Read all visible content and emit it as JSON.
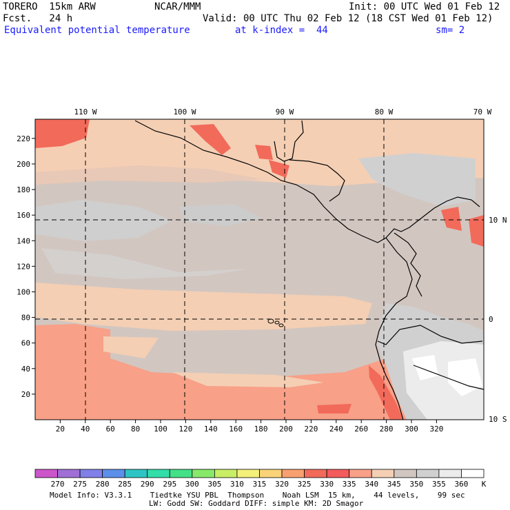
{
  "header": {
    "model": "TORERO  15km ARW",
    "org": "NCAR/MMM",
    "init": "Init: 00 UTC Wed 01 Feb 12",
    "fcst": "Fcst.   24 h",
    "valid": "Valid: 00 UTC Thu 02 Feb 12 (18 CST Wed 01 Feb 12)",
    "field": "Equivalent potential temperature",
    "level": "at k-index =  44",
    "smooth": "sm= 2"
  },
  "map": {
    "lon_labels": [
      "110 W",
      "100 W",
      "90 W",
      "80 W",
      "70 W"
    ],
    "lat_labels": [
      "10 N",
      "0",
      "10 S"
    ],
    "y_ticks": [
      "20",
      "40",
      "60",
      "80",
      "100",
      "120",
      "140",
      "160",
      "180",
      "200",
      "220"
    ],
    "x_ticks": [
      "20",
      "40",
      "60",
      "80",
      "100",
      "120",
      "140",
      "160",
      "180",
      "200",
      "220",
      "240",
      "260",
      "280",
      "300",
      "320"
    ]
  },
  "colorbar": {
    "levels": [
      "270",
      "275",
      "280",
      "285",
      "290",
      "295",
      "300",
      "305",
      "310",
      "315",
      "320",
      "325",
      "330",
      "335",
      "340",
      "345",
      "350",
      "355",
      "360"
    ],
    "unit": "K",
    "colors": [
      "#cc55cc",
      "#9f6fd6",
      "#8080e8",
      "#5b8fea",
      "#2ec4c4",
      "#33dda8",
      "#44e088",
      "#88e86a",
      "#c8ee66",
      "#f4f07a",
      "#fad278",
      "#f9a070",
      "#f26a5a",
      "#f25c5c",
      "#f8a088",
      "#f4cfb4",
      "#d2c6c0",
      "#d0d0d0",
      "#ececec",
      "#ffffff"
    ]
  },
  "footer": {
    "line1": "Model Info: V3.3.1    Tiedtke YSU PBL  Thompson    Noah LSM  15 km,    44 levels,    99 sec",
    "line2": "LW: Godd SW: Goddard DIFF: simple KM: 2D Smagor"
  }
}
